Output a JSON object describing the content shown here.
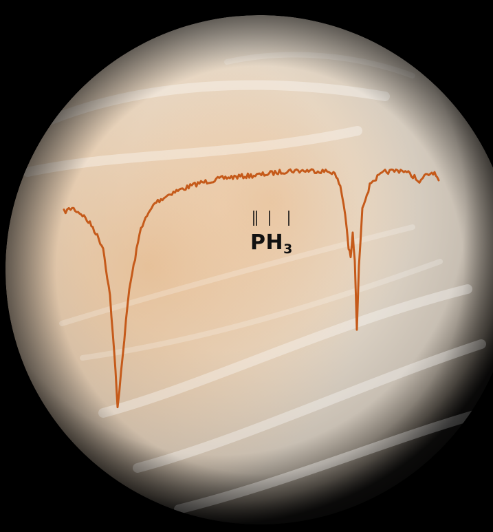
{
  "annotation": {
    "molecule_main": "PH",
    "molecule_sub": "3"
  },
  "colors": {
    "spectrum_line": "#c55a1a",
    "marker_lines": "#111111",
    "background": "#000000"
  }
}
